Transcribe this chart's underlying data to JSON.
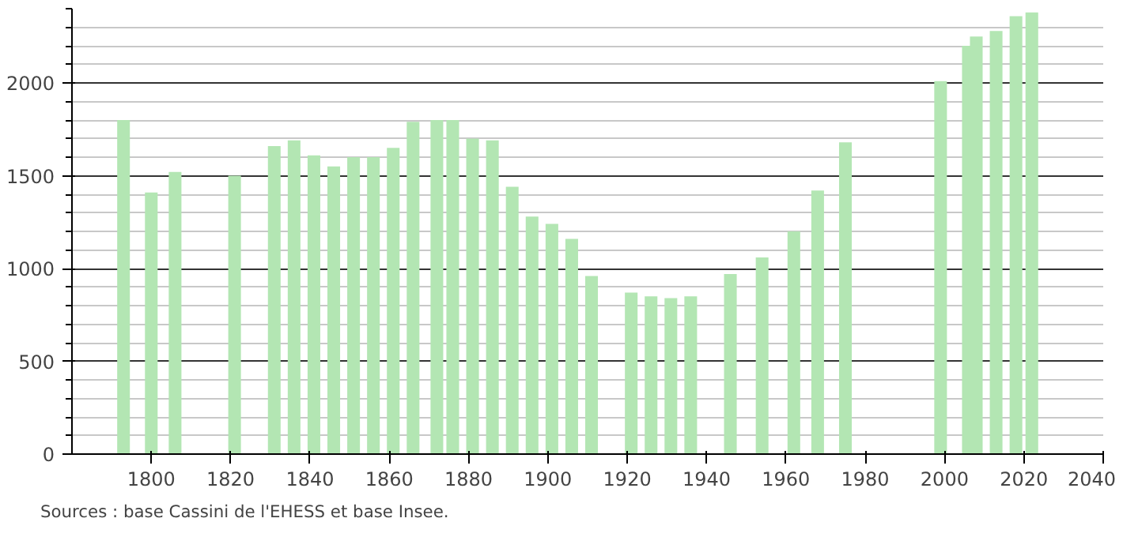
{
  "chart_data": {
    "type": "bar",
    "x": [
      1793,
      1800,
      1806,
      1821,
      1831,
      1836,
      1841,
      1846,
      1851,
      1856,
      1861,
      1866,
      1872,
      1876,
      1881,
      1886,
      1891,
      1896,
      1901,
      1906,
      1911,
      1921,
      1926,
      1931,
      1936,
      1946,
      1954,
      1962,
      1968,
      1975,
      1999,
      2006,
      2008,
      2013,
      2018,
      2022
    ],
    "series": [
      {
        "color": "#b3e6b3",
        "values": [
          1800,
          1410,
          1520,
          1500,
          1660,
          1690,
          1610,
          1550,
          1600,
          1600,
          1650,
          1790,
          1800,
          1800,
          1700,
          1690,
          1440,
          1280,
          1240,
          1160,
          960,
          870,
          850,
          840,
          850,
          970,
          1060,
          1200,
          1420,
          1680,
          2010,
          2200,
          2250,
          2280,
          2360,
          2380
        ]
      }
    ],
    "xlim": [
      1780,
      2040
    ],
    "xticks": [
      1800,
      1820,
      1840,
      1860,
      1880,
      1900,
      1920,
      1940,
      1960,
      1980,
      2000,
      2020,
      2040
    ],
    "ylim": [
      0,
      2400
    ],
    "yticks": [
      0,
      500,
      1000,
      1500,
      2000
    ],
    "grid": "y",
    "annotations": [
      "Sources : base Cassini de l'EHESS et base Insee."
    ]
  }
}
